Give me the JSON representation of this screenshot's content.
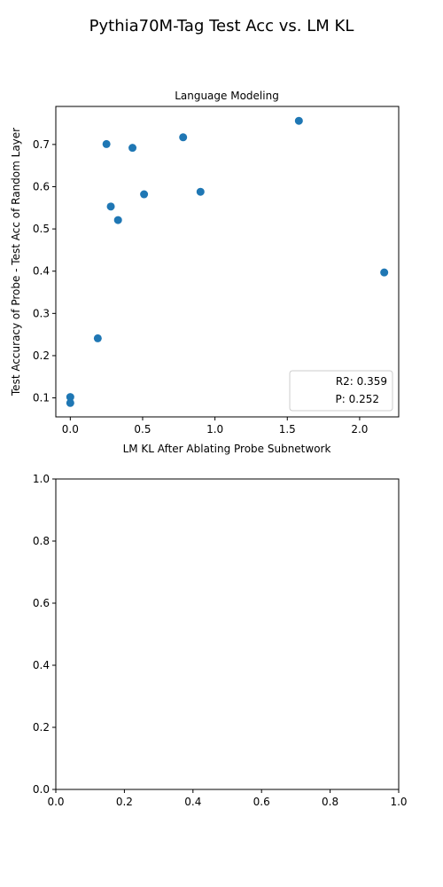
{
  "figure": {
    "suptitle": "Pythia70M-Tag Test Acc vs. LM KL"
  },
  "colors": {
    "point": "#1f77b4",
    "axis": "#000000",
    "legend_border": "#cccccc"
  },
  "chart_data": [
    {
      "type": "scatter",
      "title": "Language Modeling",
      "xlabel": "LM KL After Ablating Probe Subnetwork",
      "ylabel": "Test Accuracy of Probe - Test Acc of Random Layer",
      "xlim": [
        -0.1,
        2.27
      ],
      "ylim": [
        0.055,
        0.79
      ],
      "xticks": [
        0.0,
        0.5,
        1.0,
        1.5,
        2.0
      ],
      "xtick_labels": [
        "0.0",
        "0.5",
        "1.0",
        "1.5",
        "2.0"
      ],
      "yticks": [
        0.1,
        0.2,
        0.3,
        0.4,
        0.5,
        0.6,
        0.7
      ],
      "ytick_labels": [
        "0.1",
        "0.2",
        "0.3",
        "0.4",
        "0.5",
        "0.6",
        "0.7"
      ],
      "grid": false,
      "legend_placement": "lower-right",
      "legend": [
        "R2: 0.359",
        "P: 0.252"
      ],
      "points": [
        {
          "x": 0.0,
          "y": 0.102
        },
        {
          "x": 0.0,
          "y": 0.088
        },
        {
          "x": 0.19,
          "y": 0.241
        },
        {
          "x": 0.25,
          "y": 0.701
        },
        {
          "x": 0.28,
          "y": 0.553
        },
        {
          "x": 0.33,
          "y": 0.521
        },
        {
          "x": 0.43,
          "y": 0.692
        },
        {
          "x": 0.51,
          "y": 0.582
        },
        {
          "x": 0.78,
          "y": 0.717
        },
        {
          "x": 0.9,
          "y": 0.588
        },
        {
          "x": 1.58,
          "y": 0.756
        },
        {
          "x": 2.17,
          "y": 0.397
        }
      ]
    },
    {
      "type": "scatter",
      "title": "",
      "xlabel": "",
      "ylabel": "",
      "xlim": [
        0.0,
        1.0
      ],
      "ylim": [
        0.0,
        1.0
      ],
      "xticks": [
        0.0,
        0.2,
        0.4,
        0.6,
        0.8,
        1.0
      ],
      "xtick_labels": [
        "0.0",
        "0.2",
        "0.4",
        "0.6",
        "0.8",
        "1.0"
      ],
      "yticks": [
        0.0,
        0.2,
        0.4,
        0.6,
        0.8,
        1.0
      ],
      "ytick_labels": [
        "0.0",
        "0.2",
        "0.4",
        "0.6",
        "0.8",
        "1.0"
      ],
      "grid": false,
      "points": []
    }
  ]
}
